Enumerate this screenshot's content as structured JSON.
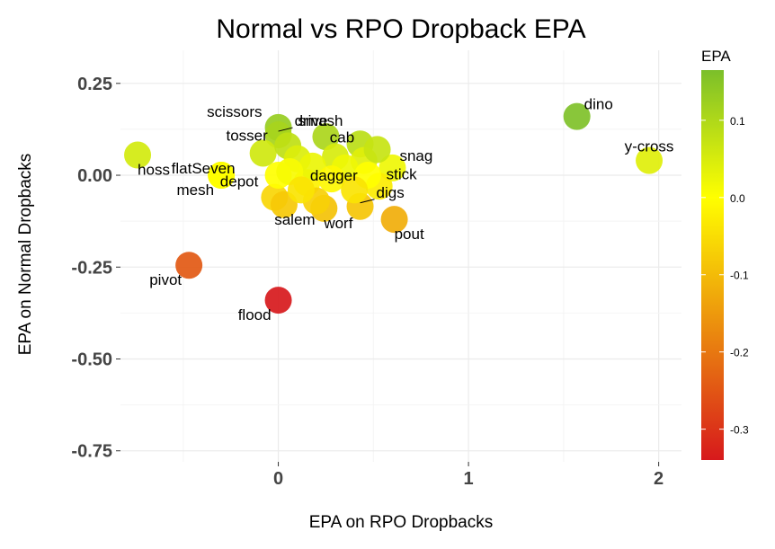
{
  "chart_data": {
    "type": "scatter",
    "title": "Normal vs RPO Dropback EPA",
    "xlabel": "EPA on RPO Dropbacks",
    "ylabel": "EPA on Normal Dropbacks",
    "xlim": [
      -0.83,
      2.12
    ],
    "ylim": [
      -0.78,
      0.34
    ],
    "x_ticks": [
      0,
      1,
      2
    ],
    "x_tick_labels": [
      "0",
      "1",
      "2"
    ],
    "y_ticks": [
      0.25,
      0.0,
      -0.25,
      -0.5,
      -0.75
    ],
    "y_tick_labels": [
      "0.25",
      "0.00",
      "-0.25",
      "-0.50",
      "-0.75"
    ],
    "grid": true,
    "legend": {
      "title": "EPA",
      "placement": "right",
      "range": [
        -0.34,
        0.165
      ],
      "ticks": [
        0.1,
        0.0,
        -0.1,
        -0.2,
        -0.3
      ],
      "tick_labels": [
        "0.1",
        "0.0",
        "-0.1",
        "-0.2",
        "-0.3"
      ],
      "colors": {
        "low": "#d7191c",
        "mid": "#ffff00",
        "high": "#7bbf2a"
      }
    },
    "points": [
      {
        "label": "dino",
        "x": 1.57,
        "y": 0.16,
        "epa": 0.16,
        "anchor": "right"
      },
      {
        "label": "y-cross",
        "x": 1.95,
        "y": 0.04,
        "epa": 0.04,
        "anchor": "top"
      },
      {
        "label": "hoss",
        "x": -0.74,
        "y": 0.055,
        "epa": 0.055,
        "anchor": "bottomright"
      },
      {
        "label": "scissors",
        "x": 0.0,
        "y": 0.13,
        "epa": 0.13,
        "anchor": "topleft"
      },
      {
        "label": "drive",
        "x": 0.0,
        "y": 0.11,
        "epa": 0.11,
        "anchor": "lineright"
      },
      {
        "label": "tosser",
        "x": -0.08,
        "y": 0.06,
        "epa": 0.06,
        "anchor": "topleft2"
      },
      {
        "label": "flatSeven",
        "x": -0.3,
        "y": 0.0,
        "epa": 0.0,
        "anchor": "topright"
      },
      {
        "label": "mesh",
        "x": -0.3,
        "y": 0.0,
        "epa": 0.0,
        "anchor": "bottomleft"
      },
      {
        "label": "cab",
        "x": 0.43,
        "y": 0.085,
        "epa": 0.085,
        "anchor": "topright"
      },
      {
        "label": "smash",
        "x": 0.25,
        "y": 0.105,
        "epa": 0.105,
        "anchor": "smash"
      },
      {
        "label": "snag",
        "x": 0.6,
        "y": 0.02,
        "epa": 0.02,
        "anchor": "right"
      },
      {
        "label": "stick",
        "x": 0.53,
        "y": -0.03,
        "epa": -0.03,
        "anchor": "right"
      },
      {
        "label": "depot",
        "x": -0.02,
        "y": -0.06,
        "epa": -0.06,
        "anchor": "topleft"
      },
      {
        "label": "dagger",
        "x": 0.15,
        "y": -0.02,
        "epa": -0.02,
        "anchor": "dagger"
      },
      {
        "label": "digs",
        "x": 0.43,
        "y": -0.085,
        "epa": -0.085,
        "anchor": "lineright"
      },
      {
        "label": "salem",
        "x": 0.03,
        "y": -0.08,
        "epa": -0.08,
        "anchor": "bottom"
      },
      {
        "label": "worf",
        "x": 0.24,
        "y": -0.09,
        "epa": -0.09,
        "anchor": "bottomright"
      },
      {
        "label": "pout",
        "x": 0.61,
        "y": -0.12,
        "epa": -0.12,
        "anchor": "bottomright"
      },
      {
        "label": "pivot",
        "x": -0.47,
        "y": -0.245,
        "epa": -0.245,
        "anchor": "bottomleft"
      },
      {
        "label": "flood",
        "x": 0.0,
        "y": -0.34,
        "epa": -0.34,
        "anchor": "bottomleft"
      },
      {
        "label": "",
        "x": 0.05,
        "y": 0.08,
        "epa": 0.08
      },
      {
        "label": "",
        "x": 0.1,
        "y": 0.045,
        "epa": 0.045
      },
      {
        "label": "",
        "x": 0.3,
        "y": 0.05,
        "epa": 0.05
      },
      {
        "label": "",
        "x": 0.45,
        "y": 0.04,
        "epa": 0.04
      },
      {
        "label": "",
        "x": 0.52,
        "y": 0.07,
        "epa": 0.07
      },
      {
        "label": "",
        "x": 0.18,
        "y": 0.025,
        "epa": 0.025
      },
      {
        "label": "",
        "x": 0.35,
        "y": 0.02,
        "epa": 0.02
      },
      {
        "label": "",
        "x": 0.47,
        "y": 0.0,
        "epa": 0.0
      },
      {
        "label": "",
        "x": 0.28,
        "y": -0.01,
        "epa": -0.01
      },
      {
        "label": "",
        "x": 0.0,
        "y": 0.0,
        "epa": 0.0
      },
      {
        "label": "",
        "x": 0.06,
        "y": 0.01,
        "epa": 0.01
      },
      {
        "label": "",
        "x": 0.4,
        "y": -0.04,
        "epa": -0.04
      },
      {
        "label": "",
        "x": 0.2,
        "y": -0.07,
        "epa": -0.07
      },
      {
        "label": "",
        "x": 0.12,
        "y": -0.04,
        "epa": -0.04
      }
    ]
  }
}
